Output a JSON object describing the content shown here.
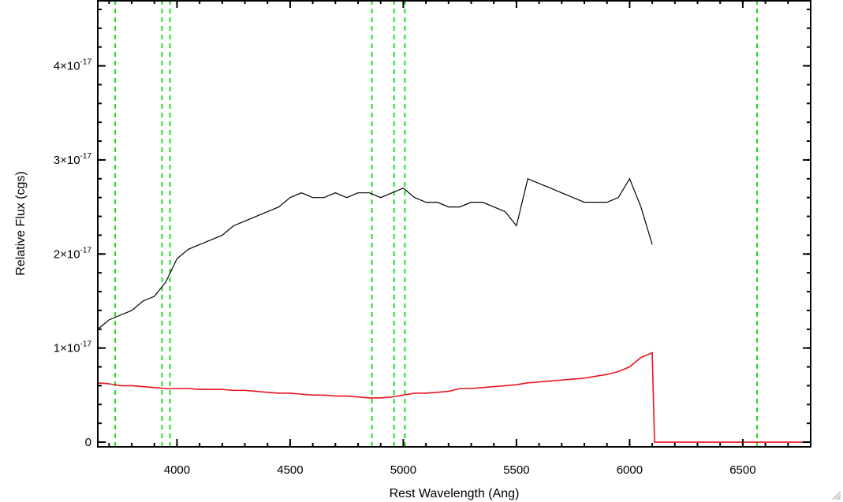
{
  "chart_data": {
    "type": "line",
    "title": "",
    "xlabel": "Rest Wavelength (Ang)",
    "ylabel": "Relative Flux (cgs)",
    "xlim": [
      3650,
      6800
    ],
    "ylim": [
      -5e-19,
      4.7e-17
    ],
    "xticks": [
      {
        "value": 4000,
        "label": "4000"
      },
      {
        "value": 4500,
        "label": "4500"
      },
      {
        "value": 5000,
        "label": "5000"
      },
      {
        "value": 5500,
        "label": "5500"
      },
      {
        "value": 6000,
        "label": "6000"
      },
      {
        "value": 6500,
        "label": "6500"
      }
    ],
    "yticks": [
      {
        "value": 0,
        "base": "0",
        "exp": ""
      },
      {
        "value": 1e-17,
        "base": "1×10",
        "exp": "-17"
      },
      {
        "value": 2e-17,
        "base": "2×10",
        "exp": "-17"
      },
      {
        "value": 3e-17,
        "base": "3×10",
        "exp": "-17"
      },
      {
        "value": 4e-17,
        "base": "4×10",
        "exp": "-17"
      }
    ],
    "grid": false,
    "series": [
      {
        "color": "#000000",
        "x": [
          3650,
          3700,
          3750,
          3800,
          3850,
          3900,
          3950,
          4000,
          4050,
          4100,
          4150,
          4200,
          4250,
          4300,
          4350,
          4400,
          4450,
          4500,
          4550,
          4600,
          4650,
          4700,
          4750,
          4800,
          4850,
          4900,
          4950,
          5000,
          5050,
          5100,
          5150,
          5200,
          5250,
          5300,
          5350,
          5400,
          5450,
          5500,
          5550,
          5600,
          5650,
          5700,
          5750,
          5800,
          5850,
          5900,
          5950,
          6000,
          6050,
          6100
        ],
        "y": [
          1.2e-17,
          1.3e-17,
          1.35e-17,
          1.4e-17,
          1.5e-17,
          1.55e-17,
          1.7e-17,
          1.95e-17,
          2.05e-17,
          2.1e-17,
          2.15e-17,
          2.2e-17,
          2.3e-17,
          2.35e-17,
          2.4e-17,
          2.45e-17,
          2.5e-17,
          2.6e-17,
          2.65e-17,
          2.6e-17,
          2.6e-17,
          2.65e-17,
          2.6e-17,
          2.65e-17,
          2.65e-17,
          2.6e-17,
          2.65e-17,
          2.7e-17,
          2.6e-17,
          2.55e-17,
          2.55e-17,
          2.5e-17,
          2.5e-17,
          2.55e-17,
          2.55e-17,
          2.5e-17,
          2.45e-17,
          2.3e-17,
          2.8e-17,
          2.75e-17,
          2.7e-17,
          2.65e-17,
          2.6e-17,
          2.55e-17,
          2.55e-17,
          2.55e-17,
          2.6e-17,
          2.8e-17,
          2.5e-17,
          2.1e-17
        ]
      },
      {
        "color": "#e8141d",
        "x": [
          3650,
          3700,
          3750,
          3800,
          3850,
          3900,
          3950,
          4000,
          4050,
          4100,
          4150,
          4200,
          4250,
          4300,
          4350,
          4400,
          4450,
          4500,
          4550,
          4600,
          4650,
          4700,
          4750,
          4800,
          4850,
          4900,
          4950,
          5000,
          5050,
          5100,
          5150,
          5200,
          5250,
          5300,
          5350,
          5400,
          5450,
          5500,
          5550,
          5600,
          5650,
          5700,
          5750,
          5800,
          5850,
          5900,
          5950,
          6000,
          6050,
          6100,
          6110,
          6300,
          6500,
          6800
        ],
        "y": [
          6.3e-18,
          6.2e-18,
          6e-18,
          6e-18,
          5.9e-18,
          5.8e-18,
          5.7e-18,
          5.7e-18,
          5.7e-18,
          5.6e-18,
          5.6e-18,
          5.6e-18,
          5.5e-18,
          5.5e-18,
          5.4e-18,
          5.3e-18,
          5.2e-18,
          5.2e-18,
          5.1e-18,
          5e-18,
          5e-18,
          4.9e-18,
          4.9e-18,
          4.8e-18,
          4.7e-18,
          4.7e-18,
          4.8e-18,
          5e-18,
          5.2e-18,
          5.2e-18,
          5.3e-18,
          5.4e-18,
          5.7e-18,
          5.7e-18,
          5.8e-18,
          5.9e-18,
          6e-18,
          6.1e-18,
          6.3e-18,
          6.4e-18,
          6.5e-18,
          6.6e-18,
          6.7e-18,
          6.8e-18,
          7e-18,
          7.2e-18,
          7.5e-18,
          8e-18,
          9e-18,
          9.5e-18,
          0,
          0,
          0,
          0
        ]
      }
    ],
    "vertical_lines": {
      "color": "#22dd22",
      "style": "dashed",
      "x": [
        3727,
        3934,
        3969,
        4861,
        4959,
        5007,
        6563
      ]
    },
    "colors": {
      "spectrum": "#000000",
      "error": "#e8141d",
      "lines": "#22dd22"
    }
  }
}
